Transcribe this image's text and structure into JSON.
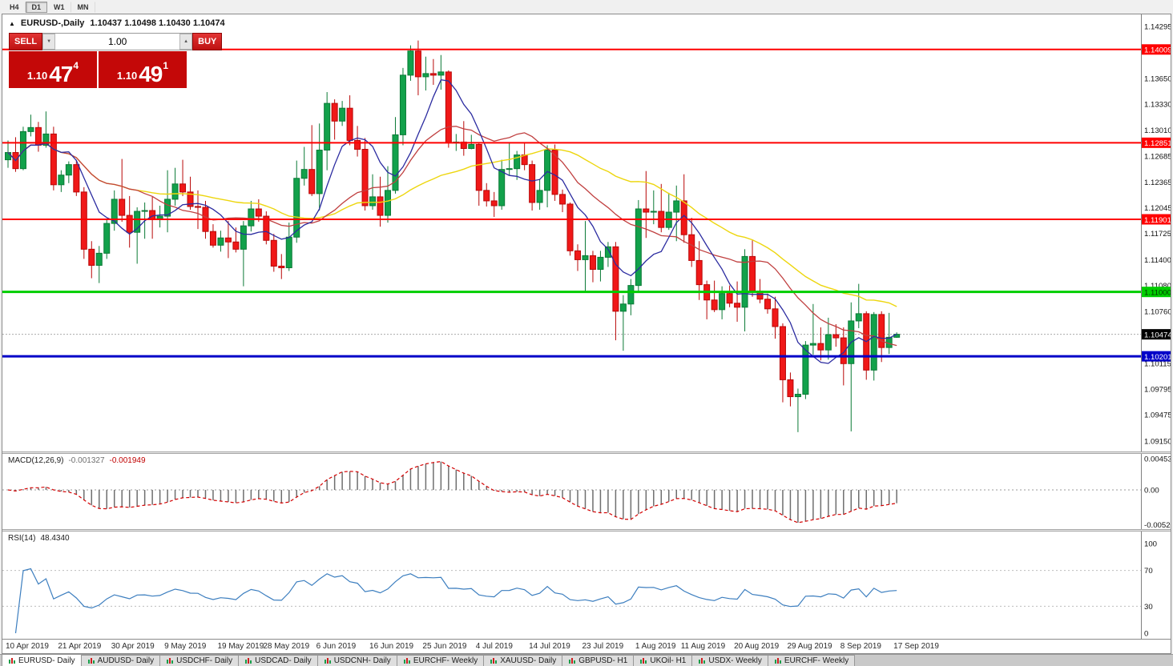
{
  "toolbar": {
    "timeframes": [
      "H4",
      "D1",
      "W1",
      "MN"
    ],
    "active": "D1"
  },
  "header": {
    "collapse_glyph": "▲",
    "symbol": "EURUSD-,Daily",
    "ohlc_text": "1.10437 1.10498 1.10430 1.10474"
  },
  "trade_panel": {
    "sell_label": "SELL",
    "buy_label": "BUY",
    "volume": "1.00",
    "dropdown_glyph": "▼",
    "up_glyph": "▲",
    "sell_price": {
      "small": "1.10",
      "big": "47",
      "sup": "4"
    },
    "buy_price": {
      "small": "1.10",
      "big": "49",
      "sup": "1"
    }
  },
  "price_axis": {
    "labels": [
      "1.14295",
      "1.13650",
      "1.13330",
      "1.13010",
      "1.12685",
      "1.12365",
      "1.12045",
      "1.11725",
      "1.11400",
      "1.11080",
      "1.10760",
      "1.10115",
      "1.09795",
      "1.09475",
      "1.09150"
    ]
  },
  "hlines": [
    {
      "price": 1.14009,
      "label": "1.14009",
      "color": "#FF0000",
      "text_color": "#FFFFFF",
      "width": 2
    },
    {
      "price": 1.12851,
      "label": "1.12851",
      "color": "#FF0000",
      "text_color": "#FFFFFF",
      "width": 2
    },
    {
      "price": 1.11901,
      "label": "1.11901",
      "color": "#FF0000",
      "text_color": "#FFFFFF",
      "width": 2
    },
    {
      "price": 1.11,
      "label": "1.11000",
      "color": "#00CE00",
      "text_color": "#003300",
      "width": 3
    },
    {
      "price": 1.10201,
      "label": "1.10201",
      "color": "#0000C8",
      "text_color": "#FFFFFF",
      "width": 3
    }
  ],
  "current_price": {
    "price": 1.10474,
    "label": "1.10474",
    "bg": "#000000",
    "text_color": "#FFFFFF"
  },
  "macd_panel": {
    "title": "MACD(12,26,9)",
    "value_main": "-0.001327",
    "value_signal": "-0.001949",
    "axis_labels": [
      "0.004536",
      "0.00",
      "-0.005205"
    ],
    "params": {
      "fast": 12,
      "slow": 26,
      "signal": 9
    }
  },
  "rsi_panel": {
    "title": "RSI(14)",
    "value": "48.4340",
    "axis_labels": [
      "100",
      "70",
      "30",
      "0"
    ],
    "period": 14,
    "levels": [
      70,
      30
    ]
  },
  "date_axis": [
    "10 Apr 2019",
    "21 Apr 2019",
    "30 Apr 2019",
    "9 May 2019",
    "19 May 2019",
    "28 May 2019",
    "6 Jun 2019",
    "16 Jun 2019",
    "25 Jun 2019",
    "4 Jul 2019",
    "14 Jul 2019",
    "23 Jul 2019",
    "1 Aug 2019",
    "11 Aug 2019",
    "20 Aug 2019",
    "29 Aug 2019",
    "8 Sep 2019",
    "17 Sep 2019"
  ],
  "tabs": {
    "active_index": 0,
    "items": [
      "EURUSD- Daily",
      "AUDUSD- Daily",
      "USDCHF- Daily",
      "USDCAD- Daily",
      "USDCNH- Daily",
      "EURCHF- Weekly",
      "XAUUSD- Daily",
      "GBPUSD- H1",
      "UKOil- H1",
      "USDX- Weekly",
      "EURCHF- Weekly"
    ]
  },
  "colors": {
    "up": "#12A14B",
    "up_border": "#0B7A36",
    "down": "#F01818",
    "down_border": "#B80808",
    "ma_fast": "#2B2BA0",
    "ma_mid": "#C04040",
    "ma_slow": "#EDD60E",
    "macd_hist": "#6E6E6E",
    "macd_signal": "#D40000",
    "rsi_line": "#3C7EBF",
    "hline_red": "#FF0000",
    "hline_green": "#00CE00",
    "hline_blue": "#0000C8"
  },
  "chart_data": {
    "type": "candlestick",
    "symbol": "EURUSD-",
    "timeframe": "Daily",
    "title": "EURUSD-,Daily",
    "ylim": [
      1.0902,
      1.14444
    ],
    "ma_periods": {
      "fast": 7,
      "mid": 18,
      "slow": 34
    },
    "ohlc": [
      [
        1.1264,
        1.1288,
        1.1254,
        1.1273
      ],
      [
        1.1273,
        1.1292,
        1.1249,
        1.1253
      ],
      [
        1.1253,
        1.1305,
        1.1251,
        1.1299
      ],
      [
        1.1299,
        1.132,
        1.1293,
        1.1304
      ],
      [
        1.1304,
        1.1311,
        1.1274,
        1.1282
      ],
      [
        1.1282,
        1.1324,
        1.1279,
        1.1296
      ],
      [
        1.1296,
        1.1305,
        1.1226,
        1.1233
      ],
      [
        1.1233,
        1.1251,
        1.1224,
        1.1245
      ],
      [
        1.1245,
        1.1262,
        1.1235,
        1.1258
      ],
      [
        1.1258,
        1.1264,
        1.1219,
        1.1224
      ],
      [
        1.1224,
        1.123,
        1.1141,
        1.1153
      ],
      [
        1.1153,
        1.1163,
        1.1117,
        1.1133
      ],
      [
        1.1133,
        1.1157,
        1.1111,
        1.1148
      ],
      [
        1.1148,
        1.119,
        1.1141,
        1.1185
      ],
      [
        1.1185,
        1.1226,
        1.1176,
        1.1215
      ],
      [
        1.1215,
        1.1265,
        1.1187,
        1.1195
      ],
      [
        1.1195,
        1.1219,
        1.1155,
        1.1174
      ],
      [
        1.1174,
        1.1205,
        1.1135,
        1.12
      ],
      [
        1.12,
        1.1211,
        1.1166,
        1.1201
      ],
      [
        1.1201,
        1.1218,
        1.1166,
        1.119
      ],
      [
        1.119,
        1.1207,
        1.118,
        1.1194
      ],
      [
        1.1194,
        1.1251,
        1.1174,
        1.1215
      ],
      [
        1.1215,
        1.1254,
        1.1207,
        1.1234
      ],
      [
        1.1234,
        1.1264,
        1.1219,
        1.1224
      ],
      [
        1.1224,
        1.1243,
        1.1202,
        1.1206
      ],
      [
        1.1206,
        1.1226,
        1.1178,
        1.1205
      ],
      [
        1.1205,
        1.1213,
        1.1166,
        1.1175
      ],
      [
        1.1175,
        1.1184,
        1.1155,
        1.1158
      ],
      [
        1.1158,
        1.1176,
        1.115,
        1.1167
      ],
      [
        1.1167,
        1.1188,
        1.1142,
        1.1162
      ],
      [
        1.1162,
        1.118,
        1.1149,
        1.1153
      ],
      [
        1.1153,
        1.1188,
        1.1107,
        1.1182
      ],
      [
        1.1182,
        1.1213,
        1.1175,
        1.1203
      ],
      [
        1.1203,
        1.1215,
        1.1187,
        1.1194
      ],
      [
        1.1194,
        1.12,
        1.1159,
        1.1164
      ],
      [
        1.1164,
        1.1172,
        1.1125,
        1.1132
      ],
      [
        1.1132,
        1.1147,
        1.1116,
        1.113
      ],
      [
        1.113,
        1.1186,
        1.1126,
        1.1168
      ],
      [
        1.1168,
        1.1263,
        1.1161,
        1.1241
      ],
      [
        1.1241,
        1.128,
        1.1232,
        1.1252
      ],
      [
        1.1252,
        1.1307,
        1.1219,
        1.1222
      ],
      [
        1.1222,
        1.1309,
        1.1201,
        1.1276
      ],
      [
        1.1276,
        1.1348,
        1.1251,
        1.1334
      ],
      [
        1.1334,
        1.1339,
        1.1289,
        1.1312
      ],
      [
        1.1312,
        1.1337,
        1.1306,
        1.1328
      ],
      [
        1.1328,
        1.1344,
        1.1282,
        1.1288
      ],
      [
        1.1288,
        1.1306,
        1.1268,
        1.1277
      ],
      [
        1.1277,
        1.1291,
        1.1201,
        1.1207
      ],
      [
        1.1207,
        1.1246,
        1.1202,
        1.1218
      ],
      [
        1.1218,
        1.1243,
        1.1181,
        1.1195
      ],
      [
        1.1195,
        1.1256,
        1.1186,
        1.1226
      ],
      [
        1.1226,
        1.1317,
        1.1222,
        1.1295
      ],
      [
        1.1295,
        1.1378,
        1.1282,
        1.1369
      ],
      [
        1.1369,
        1.1406,
        1.1362,
        1.1399
      ],
      [
        1.1399,
        1.1412,
        1.1344,
        1.1367
      ],
      [
        1.1367,
        1.1392,
        1.135,
        1.1371
      ],
      [
        1.1371,
        1.1389,
        1.1357,
        1.1369
      ],
      [
        1.1369,
        1.1394,
        1.1351,
        1.1373
      ],
      [
        1.1373,
        1.1375,
        1.1279,
        1.1285
      ],
      [
        1.1285,
        1.1296,
        1.1275,
        1.1286
      ],
      [
        1.1286,
        1.1312,
        1.1269,
        1.1278
      ],
      [
        1.1278,
        1.1295,
        1.1277,
        1.1283
      ],
      [
        1.1283,
        1.1286,
        1.1207,
        1.1226
      ],
      [
        1.1226,
        1.1235,
        1.1206,
        1.1213
      ],
      [
        1.1213,
        1.1224,
        1.1193,
        1.1207
      ],
      [
        1.1207,
        1.1264,
        1.1202,
        1.1252
      ],
      [
        1.1252,
        1.1286,
        1.1245,
        1.1253
      ],
      [
        1.1253,
        1.1275,
        1.1239,
        1.127
      ],
      [
        1.127,
        1.1285,
        1.1251,
        1.1258
      ],
      [
        1.1258,
        1.1263,
        1.1201,
        1.1211
      ],
      [
        1.1211,
        1.124,
        1.1202,
        1.1226
      ],
      [
        1.1226,
        1.1282,
        1.1205,
        1.1276
      ],
      [
        1.1276,
        1.1283,
        1.1213,
        1.1221
      ],
      [
        1.1221,
        1.1227,
        1.1199,
        1.1209
      ],
      [
        1.1209,
        1.1211,
        1.1145,
        1.1151
      ],
      [
        1.1151,
        1.1159,
        1.1126,
        1.114
      ],
      [
        1.114,
        1.1188,
        1.1101,
        1.1145
      ],
      [
        1.1145,
        1.1151,
        1.1112,
        1.1128
      ],
      [
        1.1128,
        1.1151,
        1.1113,
        1.1143
      ],
      [
        1.1143,
        1.1162,
        1.1131,
        1.1156
      ],
      [
        1.1156,
        1.1162,
        1.104,
        1.1076
      ],
      [
        1.1076,
        1.1096,
        1.1027,
        1.1085
      ],
      [
        1.1085,
        1.1116,
        1.1071,
        1.1108
      ],
      [
        1.1108,
        1.1214,
        1.1101,
        1.1203
      ],
      [
        1.1203,
        1.125,
        1.1167,
        1.1199
      ],
      [
        1.1199,
        1.1226,
        1.1184,
        1.12
      ],
      [
        1.12,
        1.1234,
        1.1174,
        1.118
      ],
      [
        1.118,
        1.1223,
        1.1177,
        1.1199
      ],
      [
        1.1199,
        1.1232,
        1.1163,
        1.1213
      ],
      [
        1.1213,
        1.1246,
        1.1161,
        1.1171
      ],
      [
        1.1171,
        1.1192,
        1.1131,
        1.1139
      ],
      [
        1.1139,
        1.1163,
        1.109,
        1.1109
      ],
      [
        1.1109,
        1.1114,
        1.1066,
        1.109
      ],
      [
        1.109,
        1.1114,
        1.1075,
        1.1078
      ],
      [
        1.1078,
        1.1107,
        1.1066,
        1.1098
      ],
      [
        1.1098,
        1.1108,
        1.1081,
        1.1086
      ],
      [
        1.1086,
        1.1113,
        1.1063,
        1.1081
      ],
      [
        1.1081,
        1.1153,
        1.1051,
        1.1144
      ],
      [
        1.1144,
        1.1164,
        1.1094,
        1.1101
      ],
      [
        1.1101,
        1.1116,
        1.1086,
        1.1091
      ],
      [
        1.1091,
        1.1098,
        1.1073,
        1.1079
      ],
      [
        1.1079,
        1.1094,
        1.1042,
        1.1057
      ],
      [
        1.1057,
        1.1061,
        1.0963,
        1.0991
      ],
      [
        1.0991,
        1.1,
        1.0958,
        1.097
      ],
      [
        1.097,
        1.098,
        1.0926,
        1.0973
      ],
      [
        1.0973,
        1.1039,
        1.0967,
        1.1034
      ],
      [
        1.1034,
        1.1085,
        1.1022,
        1.1036
      ],
      [
        1.1036,
        1.1056,
        1.1015,
        1.1028
      ],
      [
        1.1028,
        1.1068,
        1.1016,
        1.1047
      ],
      [
        1.1047,
        1.106,
        1.1032,
        1.1043
      ],
      [
        1.1043,
        1.1056,
        1.0984,
        1.1011
      ],
      [
        1.1011,
        1.1087,
        1.0927,
        1.1064
      ],
      [
        1.1064,
        1.111,
        1.1055,
        1.1073
      ],
      [
        1.1073,
        1.1076,
        1.0991,
        1.1003
      ],
      [
        1.1003,
        1.1075,
        1.099,
        1.1072
      ],
      [
        1.1072,
        1.1076,
        1.1013,
        1.1031
      ],
      [
        1.1031,
        1.1074,
        1.1023,
        1.10437
      ],
      [
        1.10437,
        1.10498,
        1.1043,
        1.10474
      ]
    ]
  }
}
